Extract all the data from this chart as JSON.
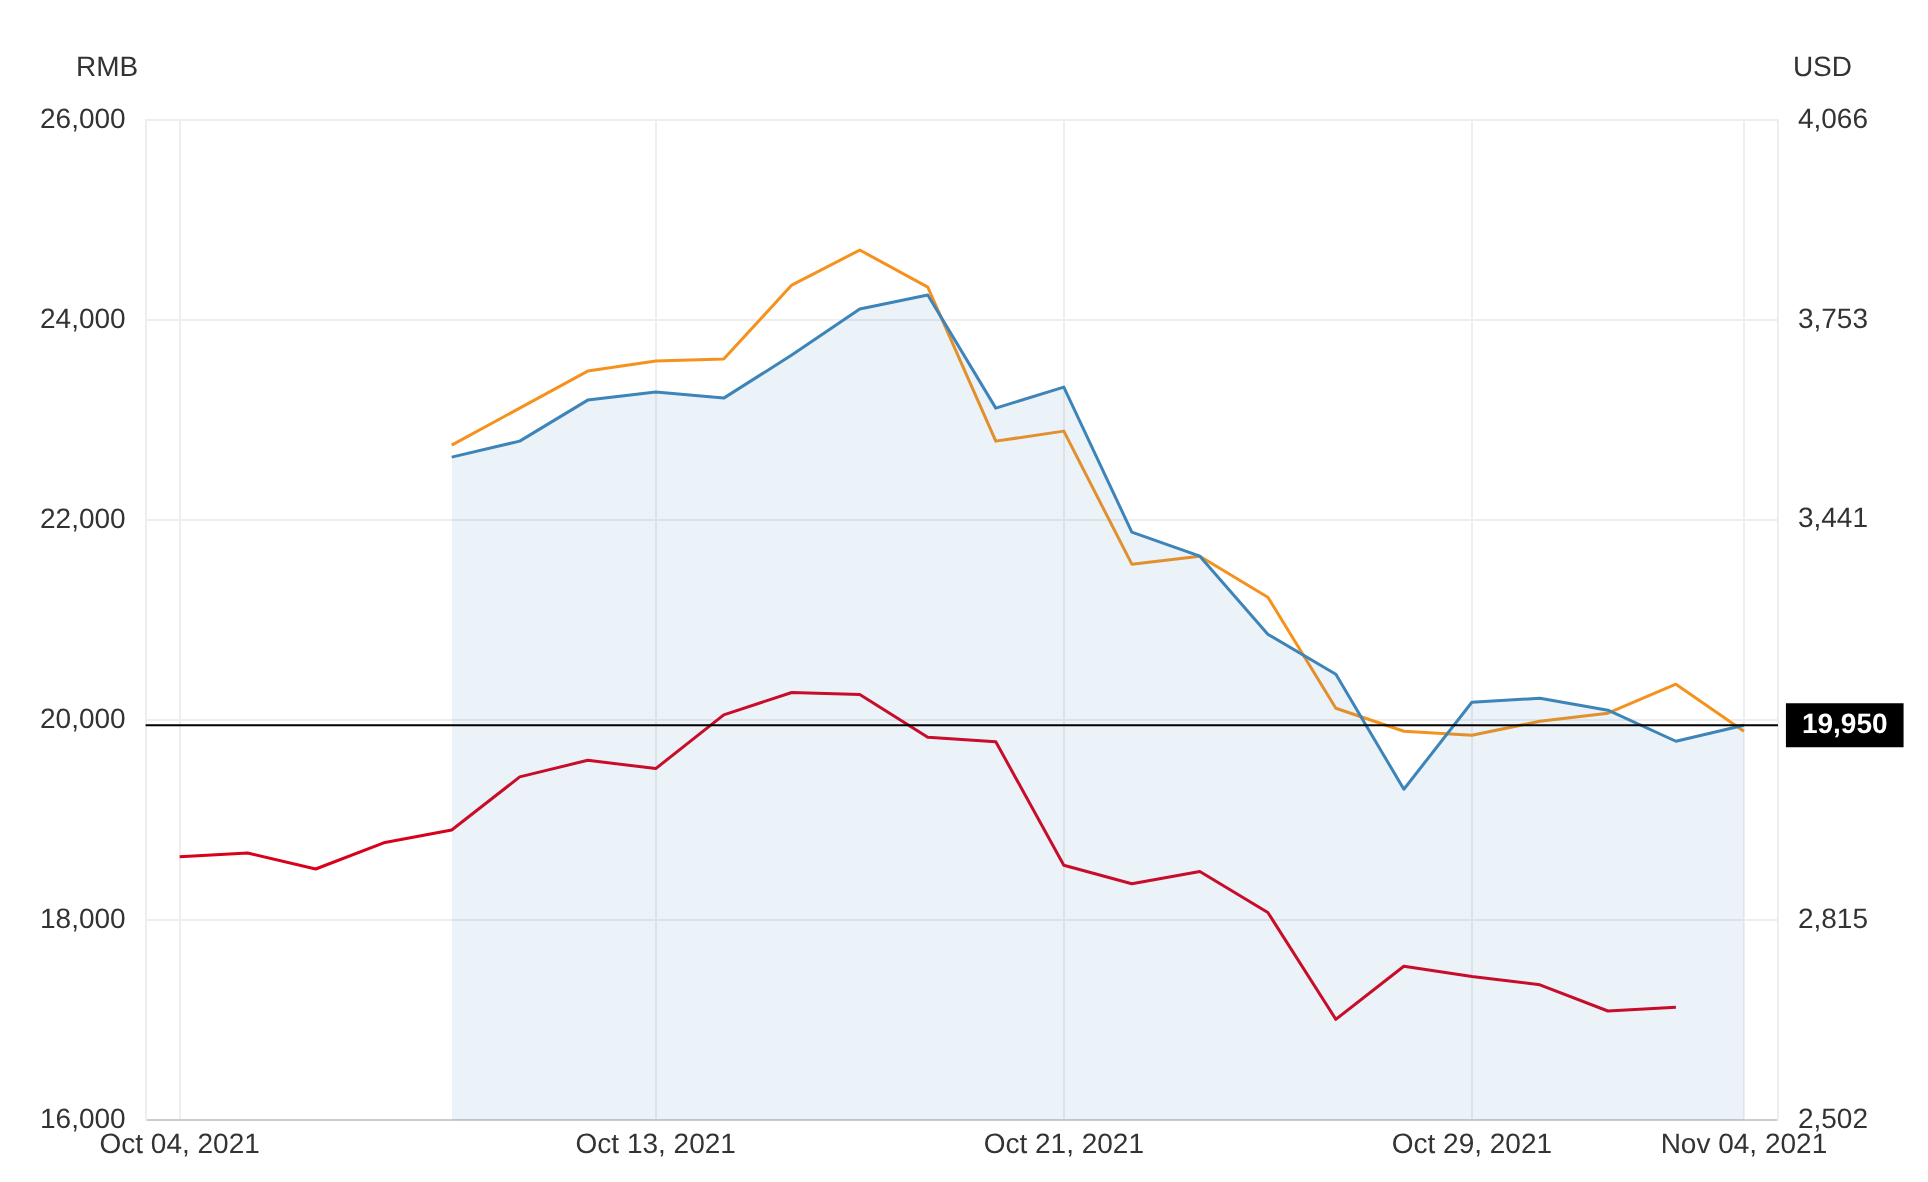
{
  "chart_data": {
    "type": "line",
    "ylabel": "RMB",
    "y2label": "USD",
    "categories": [
      "Oct 04, 2021",
      null,
      null,
      null,
      null,
      null,
      null,
      "Oct 13, 2021",
      null,
      null,
      null,
      null,
      null,
      "Oct 21, 2021",
      null,
      null,
      null,
      null,
      null,
      "Oct 29, 2021",
      null,
      null,
      null,
      "Nov 04, 2021"
    ],
    "series": [
      {
        "type": "area",
        "color": "#3d84b8",
        "values": [
          null,
          null,
          null,
          null,
          22630,
          22790,
          23200,
          23280,
          23220,
          23650,
          24110,
          24250,
          23120,
          23330,
          21880,
          21640,
          20860,
          20460,
          19310,
          20180,
          20220,
          20100,
          19790,
          19950
        ]
      },
      {
        "color": "#f5921e",
        "values": [
          null,
          null,
          null,
          null,
          22750,
          23120,
          23490,
          23590,
          23610,
          24350,
          24700,
          24330,
          22790,
          22890,
          21560,
          21640,
          21230,
          20120,
          19890,
          19850,
          19990,
          20070,
          20360,
          19890
        ]
      },
      {
        "color": "#d9001b",
        "axis": "y2",
        "values": [
          2914,
          2920,
          2895,
          2936,
          2956,
          3039,
          3065,
          3052,
          3136,
          3171,
          3168,
          3101,
          3094,
          2901,
          2872,
          2891,
          2827,
          2660,
          2743,
          2727,
          2714,
          2673,
          2679,
          null
        ]
      }
    ],
    "ylim": [
      16000,
      26000
    ],
    "yticks": [
      {
        "value": 16000,
        "label": "16,000"
      },
      {
        "value": 18000,
        "label": "18,000"
      },
      {
        "value": 20000,
        "label": "20,000"
      },
      {
        "value": 22000,
        "label": "22,000"
      },
      {
        "value": 24000,
        "label": "24,000"
      },
      {
        "value": 26000,
        "label": "26,000"
      }
    ],
    "y2lim": [
      2502,
      4066
    ],
    "y2ticks": [
      {
        "value": 2502,
        "label": "2,502"
      },
      {
        "value": 2815,
        "label": "2,815"
      },
      {
        "value": 3441,
        "label": "3,441"
      },
      {
        "value": 3753,
        "label": "3,753"
      },
      {
        "value": 4066,
        "label": "4,066"
      }
    ],
    "ref_lines": [
      {
        "axis": "y",
        "value": 19950,
        "label": "19,950",
        "color": "#000000"
      }
    ],
    "grid": true,
    "marker": "none",
    "line_style": "solid"
  }
}
